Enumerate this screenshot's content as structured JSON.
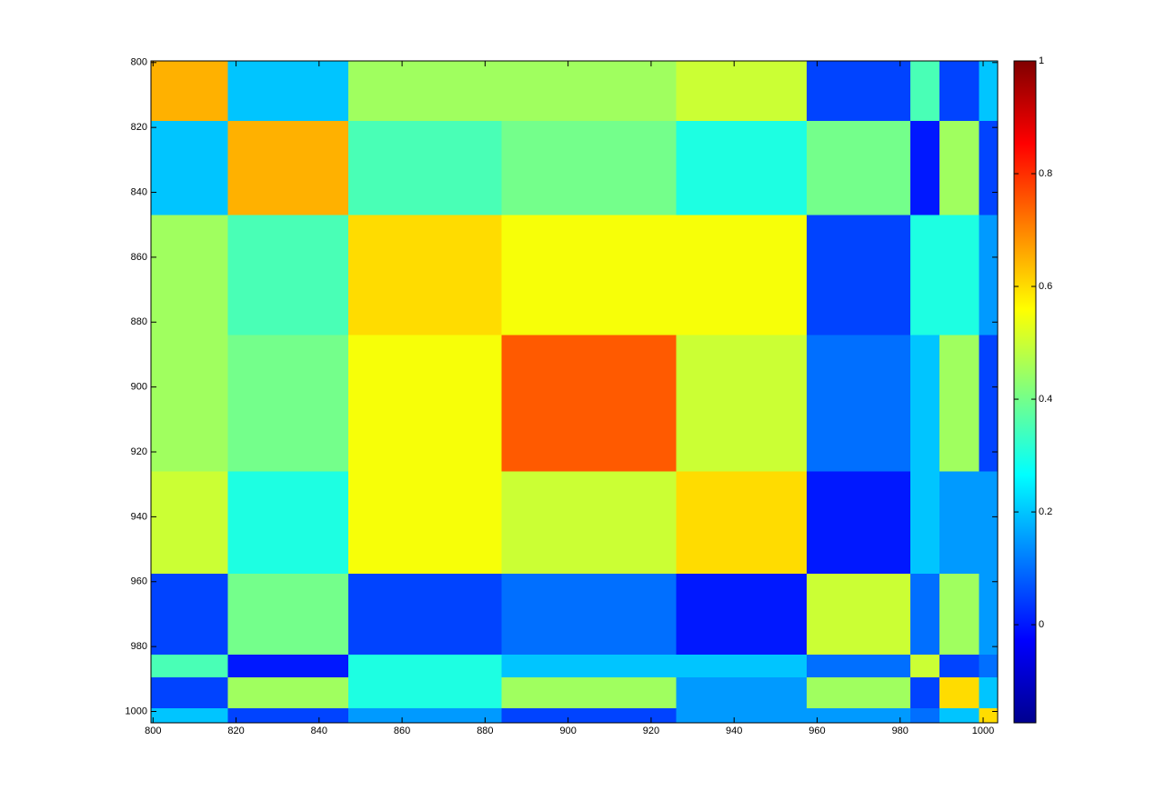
{
  "chart_data": {
    "type": "heatmap",
    "x_edges": [
      799.5,
      818,
      847,
      884,
      926,
      957.5,
      982.5,
      989.5,
      999,
      1003.5
    ],
    "y_edges": [
      799.5,
      818,
      847,
      884,
      926,
      957.5,
      982.5,
      989.5,
      999,
      1003.5
    ],
    "values": [
      [
        0.65,
        0.2,
        0.45,
        0.45,
        0.5,
        0.05,
        0.35,
        0.05,
        0.2
      ],
      [
        0.2,
        0.65,
        0.35,
        0.4,
        0.3,
        0.4,
        0.0,
        0.45,
        0.05
      ],
      [
        0.45,
        0.35,
        0.6,
        0.55,
        0.55,
        0.05,
        0.3,
        0.3,
        0.15
      ],
      [
        0.45,
        0.4,
        0.55,
        0.75,
        0.5,
        0.1,
        0.2,
        0.45,
        0.05
      ],
      [
        0.5,
        0.3,
        0.55,
        0.5,
        0.6,
        0.0,
        0.2,
        0.15,
        0.15
      ],
      [
        0.05,
        0.4,
        0.05,
        0.1,
        0.0,
        0.5,
        0.1,
        0.45,
        0.15
      ],
      [
        0.35,
        0.0,
        0.3,
        0.2,
        0.2,
        0.1,
        0.5,
        0.05,
        0.1
      ],
      [
        0.05,
        0.45,
        0.3,
        0.45,
        0.15,
        0.45,
        0.05,
        0.6,
        0.2
      ],
      [
        0.2,
        0.05,
        0.15,
        0.05,
        0.15,
        0.15,
        0.1,
        0.2,
        0.6
      ]
    ],
    "xlim": [
      799.5,
      1003.5
    ],
    "ylim": [
      799.5,
      1003.5
    ],
    "xticks": [
      800,
      820,
      840,
      860,
      880,
      900,
      920,
      940,
      960,
      980,
      1000
    ],
    "yticks": [
      800,
      820,
      840,
      860,
      880,
      900,
      920,
      940,
      960,
      980,
      1000
    ],
    "y_reversed": true,
    "colormap": "jet",
    "clim": [
      -0.174,
      1
    ],
    "cticks": [
      0,
      0.2,
      0.4,
      0.6,
      0.8,
      1
    ]
  }
}
